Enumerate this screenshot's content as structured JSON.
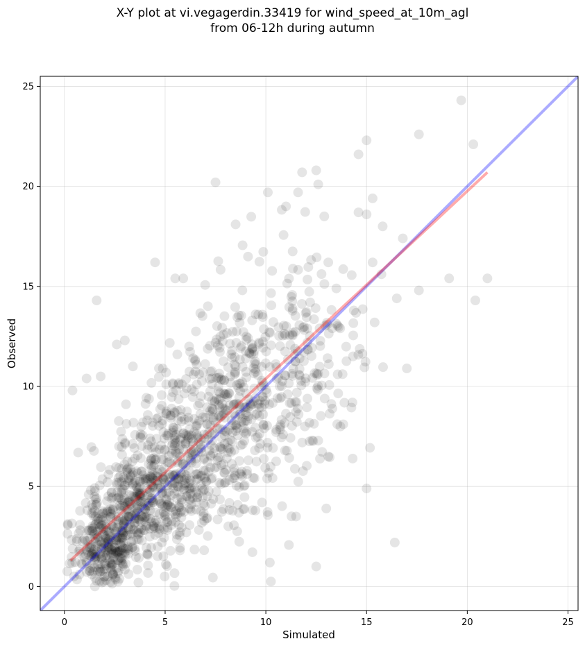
{
  "chart_data": {
    "type": "scatter",
    "title_lines": [
      "X-Y plot at vi.vegagerdin.33419 for wind_speed_at_10m_agl",
      "from 06-12h during autumn"
    ],
    "xlabel": "Simulated",
    "ylabel": "Observed",
    "xlim": [
      -1.2,
      25.5
    ],
    "ylim": [
      -1.2,
      25.5
    ],
    "xticks": [
      0,
      5,
      10,
      15,
      20,
      25
    ],
    "yticks": [
      0,
      5,
      10,
      15,
      20,
      25
    ],
    "grid": true,
    "colors": {
      "points": "#000000",
      "identity_line": "#0000ff",
      "fit_line": "#ff0000"
    },
    "identity_line": {
      "x": [
        -1.2,
        25.5
      ],
      "y": [
        -1.2,
        25.5
      ]
    },
    "fit_line": {
      "x": [
        0.3,
        21.0
      ],
      "y": [
        1.3,
        20.7
      ]
    },
    "outlier_points": [
      {
        "x": 0.4,
        "y": 9.8
      },
      {
        "x": 1.1,
        "y": 10.4
      },
      {
        "x": 1.8,
        "y": 10.5
      },
      {
        "x": 1.6,
        "y": 14.3
      },
      {
        "x": 2.6,
        "y": 12.1
      },
      {
        "x": 3.0,
        "y": 12.3
      },
      {
        "x": 3.4,
        "y": 11.0
      },
      {
        "x": 4.5,
        "y": 16.2
      },
      {
        "x": 5.5,
        "y": 15.4
      },
      {
        "x": 5.9,
        "y": 15.4
      },
      {
        "x": 7.5,
        "y": 20.2
      },
      {
        "x": 8.5,
        "y": 18.1
      },
      {
        "x": 10.1,
        "y": 19.7
      },
      {
        "x": 11.0,
        "y": 19.0
      },
      {
        "x": 11.6,
        "y": 19.7
      },
      {
        "x": 11.8,
        "y": 20.7
      },
      {
        "x": 12.5,
        "y": 20.8
      },
      {
        "x": 12.6,
        "y": 20.1
      },
      {
        "x": 14.6,
        "y": 21.6
      },
      {
        "x": 15.0,
        "y": 22.3
      },
      {
        "x": 17.6,
        "y": 22.6
      },
      {
        "x": 19.7,
        "y": 24.3
      },
      {
        "x": 20.3,
        "y": 22.1
      },
      {
        "x": 16.8,
        "y": 17.4
      },
      {
        "x": 17.6,
        "y": 14.8
      },
      {
        "x": 19.1,
        "y": 15.4
      },
      {
        "x": 20.4,
        "y": 14.3
      },
      {
        "x": 21.0,
        "y": 15.4
      },
      {
        "x": 17.0,
        "y": 10.9
      },
      {
        "x": 16.5,
        "y": 14.4
      },
      {
        "x": 15.4,
        "y": 13.2
      },
      {
        "x": 16.4,
        "y": 2.2
      },
      {
        "x": 15.0,
        "y": 4.9
      },
      {
        "x": 13.0,
        "y": 3.9
      },
      {
        "x": 12.5,
        "y": 1.0
      },
      {
        "x": 10.2,
        "y": 1.2
      },
      {
        "x": 14.3,
        "y": 9.2
      },
      {
        "x": 13.7,
        "y": 8.0
      },
      {
        "x": 13.1,
        "y": 6.5
      },
      {
        "x": 12.3,
        "y": 7.3
      },
      {
        "x": 11.5,
        "y": 3.5
      },
      {
        "x": 15.3,
        "y": 16.2
      },
      {
        "x": 15.8,
        "y": 18.0
      },
      {
        "x": 15.3,
        "y": 19.4
      },
      {
        "x": 14.6,
        "y": 18.7
      },
      {
        "x": 15.0,
        "y": 18.6
      },
      {
        "x": 13.1,
        "y": 16.2
      },
      {
        "x": 13.5,
        "y": 14.9
      },
      {
        "x": 12.2,
        "y": 14.2
      },
      {
        "x": 12.9,
        "y": 18.5
      }
    ],
    "point_clusters": [
      {
        "cx": 2.0,
        "cy": 2.0,
        "sx": 0.8,
        "sy": 1.0,
        "n": 260
      },
      {
        "cx": 3.5,
        "cy": 4.0,
        "sx": 1.1,
        "sy": 1.5,
        "n": 300
      },
      {
        "cx": 5.5,
        "cy": 6.0,
        "sx": 1.4,
        "sy": 2.0,
        "n": 320
      },
      {
        "cx": 7.5,
        "cy": 8.0,
        "sx": 1.6,
        "sy": 2.5,
        "n": 260
      },
      {
        "cx": 9.5,
        "cy": 10.0,
        "sx": 1.6,
        "sy": 2.6,
        "n": 190
      },
      {
        "cx": 11.5,
        "cy": 11.5,
        "sx": 1.5,
        "sy": 2.8,
        "n": 110
      },
      {
        "cx": 13.0,
        "cy": 12.5,
        "sx": 1.3,
        "sy": 2.6,
        "n": 40
      }
    ]
  }
}
